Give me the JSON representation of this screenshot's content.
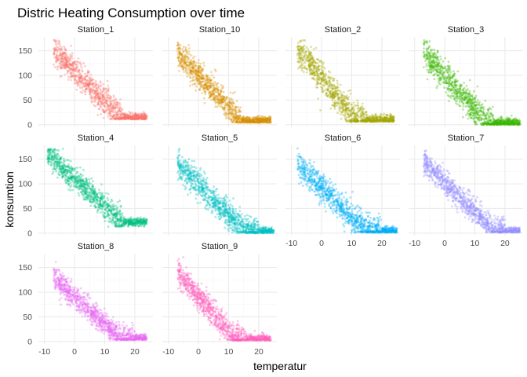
{
  "chart_data": {
    "type": "scatter",
    "title": "Distric Heating Consumption over time",
    "xlabel": "temperatur",
    "ylabel": "konsumtion",
    "xlim": [
      -12,
      26
    ],
    "ylim": [
      -5,
      178
    ],
    "x_ticks": [
      -10,
      0,
      10,
      20
    ],
    "y_ticks": [
      0,
      50,
      100,
      150
    ],
    "grid": true,
    "layout": {
      "columns": 4,
      "rows": 3
    },
    "series": [
      {
        "name": "Station_1",
        "color": "#F8766D",
        "t_min": -7,
        "t_max": 24,
        "base_max": 150,
        "slope": 6.0,
        "pivot": 16,
        "floor": 15,
        "noise": 14
      },
      {
        "name": "Station_10",
        "color": "#D89000",
        "t_min": -7,
        "t_max": 24,
        "base_max": 145,
        "slope": 6.5,
        "pivot": 14,
        "floor": 8,
        "noise": 14
      },
      {
        "name": "Station_2",
        "color": "#A3A500",
        "t_min": -8,
        "t_max": 24,
        "base_max": 155,
        "slope": 7.5,
        "pivot": 15,
        "floor": 10,
        "noise": 16
      },
      {
        "name": "Station_3",
        "color": "#39B600",
        "t_min": -7,
        "t_max": 25,
        "base_max": 150,
        "slope": 7.0,
        "pivot": 16,
        "floor": 4,
        "noise": 16
      },
      {
        "name": "Station_4",
        "color": "#00BF7D",
        "t_min": -9,
        "t_max": 24,
        "base_max": 160,
        "slope": 5.5,
        "pivot": 16,
        "floor": 17,
        "noise": 13
      },
      {
        "name": "Station_5",
        "color": "#00BFC4",
        "t_min": -7,
        "t_max": 25,
        "base_max": 140,
        "slope": 6.0,
        "pivot": 20,
        "floor": 4,
        "noise": 14
      },
      {
        "name": "Station_6",
        "color": "#00B0F6",
        "t_min": -8,
        "t_max": 25,
        "base_max": 140,
        "slope": 6.0,
        "pivot": 20,
        "floor": 5,
        "noise": 14
      },
      {
        "name": "Station_7",
        "color": "#9590FF",
        "t_min": -7,
        "t_max": 25,
        "base_max": 145,
        "slope": 6.0,
        "pivot": 20,
        "floor": 5,
        "noise": 12
      },
      {
        "name": "Station_8",
        "color": "#E76BF3",
        "t_min": -7,
        "t_max": 24,
        "base_max": 130,
        "slope": 5.5,
        "pivot": 20,
        "floor": 7,
        "noise": 12
      },
      {
        "name": "Station_9",
        "color": "#FF62BC",
        "t_min": -7,
        "t_max": 24,
        "base_max": 140,
        "slope": 7.0,
        "pivot": 16,
        "floor": 6,
        "noise": 13
      }
    ],
    "panel_background": "#FFFFFF",
    "grid_major_color": "#EBEBEB",
    "grid_minor_color": "#F5F5F5"
  }
}
